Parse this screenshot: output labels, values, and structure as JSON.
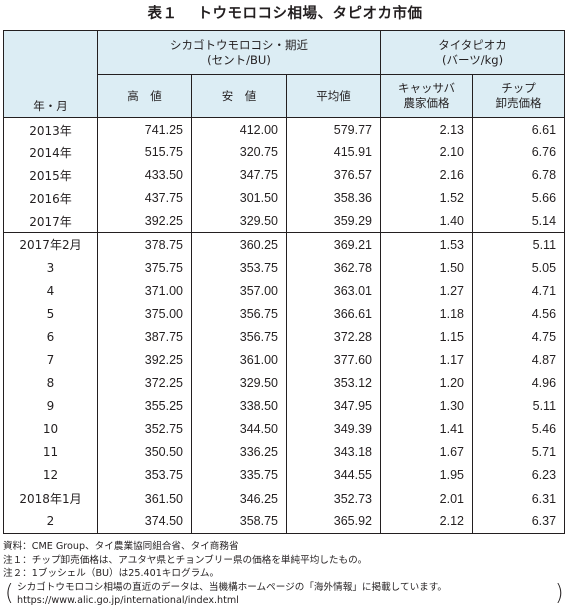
{
  "title": {
    "number": "表１",
    "text": "トウモロコシ相場、タピオカ市価"
  },
  "header": {
    "row_label": "年・月",
    "group1_line1": "シカゴトウモロコシ・期近",
    "group1_line2": "(セント/BU)",
    "group2_line1": "タイタピオカ",
    "group2_line2": "(バーツ/kg)",
    "col_high": "高　値",
    "col_low": "安　値",
    "col_avg": "平均値",
    "col_cassava_l1": "キャッサバ",
    "col_cassava_l2": "農家価格",
    "col_chip_l1": "チップ",
    "col_chip_l2": "卸売価格"
  },
  "annual_rows": [
    {
      "label": "2013年",
      "high": "741.25",
      "low": "412.00",
      "avg": "579.77",
      "cassava": "2.13",
      "chip": "6.61"
    },
    {
      "label": "2014年",
      "high": "515.75",
      "low": "320.75",
      "avg": "415.91",
      "cassava": "2.10",
      "chip": "6.76"
    },
    {
      "label": "2015年",
      "high": "433.50",
      "low": "347.75",
      "avg": "376.57",
      "cassava": "2.16",
      "chip": "6.78"
    },
    {
      "label": "2016年",
      "high": "437.75",
      "low": "301.50",
      "avg": "358.36",
      "cassava": "1.52",
      "chip": "5.66"
    },
    {
      "label": "2017年",
      "high": "392.25",
      "low": "329.50",
      "avg": "359.29",
      "cassava": "1.40",
      "chip": "5.14"
    }
  ],
  "monthly_rows": [
    {
      "label": "2017年2月",
      "high": "378.75",
      "low": "360.25",
      "avg": "369.21",
      "cassava": "1.53",
      "chip": "5.11"
    },
    {
      "label": "3",
      "high": "375.75",
      "low": "353.75",
      "avg": "362.78",
      "cassava": "1.50",
      "chip": "5.05"
    },
    {
      "label": "4",
      "high": "371.00",
      "low": "357.00",
      "avg": "363.01",
      "cassava": "1.27",
      "chip": "4.71"
    },
    {
      "label": "5",
      "high": "375.00",
      "low": "356.75",
      "avg": "366.61",
      "cassava": "1.18",
      "chip": "4.56"
    },
    {
      "label": "6",
      "high": "387.75",
      "low": "356.75",
      "avg": "372.28",
      "cassava": "1.15",
      "chip": "4.75"
    },
    {
      "label": "7",
      "high": "392.25",
      "low": "361.00",
      "avg": "377.60",
      "cassava": "1.17",
      "chip": "4.87"
    },
    {
      "label": "8",
      "high": "372.25",
      "low": "329.50",
      "avg": "353.12",
      "cassava": "1.20",
      "chip": "4.96"
    },
    {
      "label": "9",
      "high": "355.25",
      "low": "338.50",
      "avg": "347.95",
      "cassava": "1.30",
      "chip": "5.11"
    },
    {
      "label": "10",
      "high": "352.75",
      "low": "344.50",
      "avg": "349.39",
      "cassava": "1.41",
      "chip": "5.46"
    },
    {
      "label": "11",
      "high": "350.50",
      "low": "336.25",
      "avg": "343.18",
      "cassava": "1.67",
      "chip": "5.71"
    },
    {
      "label": "12",
      "high": "353.75",
      "low": "335.75",
      "avg": "344.55",
      "cassava": "1.95",
      "chip": "6.23"
    },
    {
      "label": "2018年1月",
      "high": "361.50",
      "low": "346.25",
      "avg": "352.73",
      "cassava": "2.01",
      "chip": "6.31"
    },
    {
      "label": "2",
      "high": "374.50",
      "low": "358.75",
      "avg": "365.92",
      "cassava": "2.12",
      "chip": "6.37"
    }
  ],
  "notes": {
    "source": "資料：CME Group、タイ農業協同組合省、タイ商務省",
    "note1": "注１：チップ卸売価格は、アユタヤ県とチョンブリー県の価格を単純平均したもの。",
    "note2": "注２：1ブッシェル（BU）は25.401キログラム。",
    "reference_line1": "シカゴトウモロコシ相場の直近のデータは、当機構ホームページの「海外情報」に掲載しています。",
    "reference_url": "https://www.alic.go.jp/international/index.html",
    "paren_open": "(",
    "paren_close": ")"
  },
  "colors": {
    "header_bg": "#dcedf4",
    "text": "#231f20",
    "rule": "#231f20"
  }
}
